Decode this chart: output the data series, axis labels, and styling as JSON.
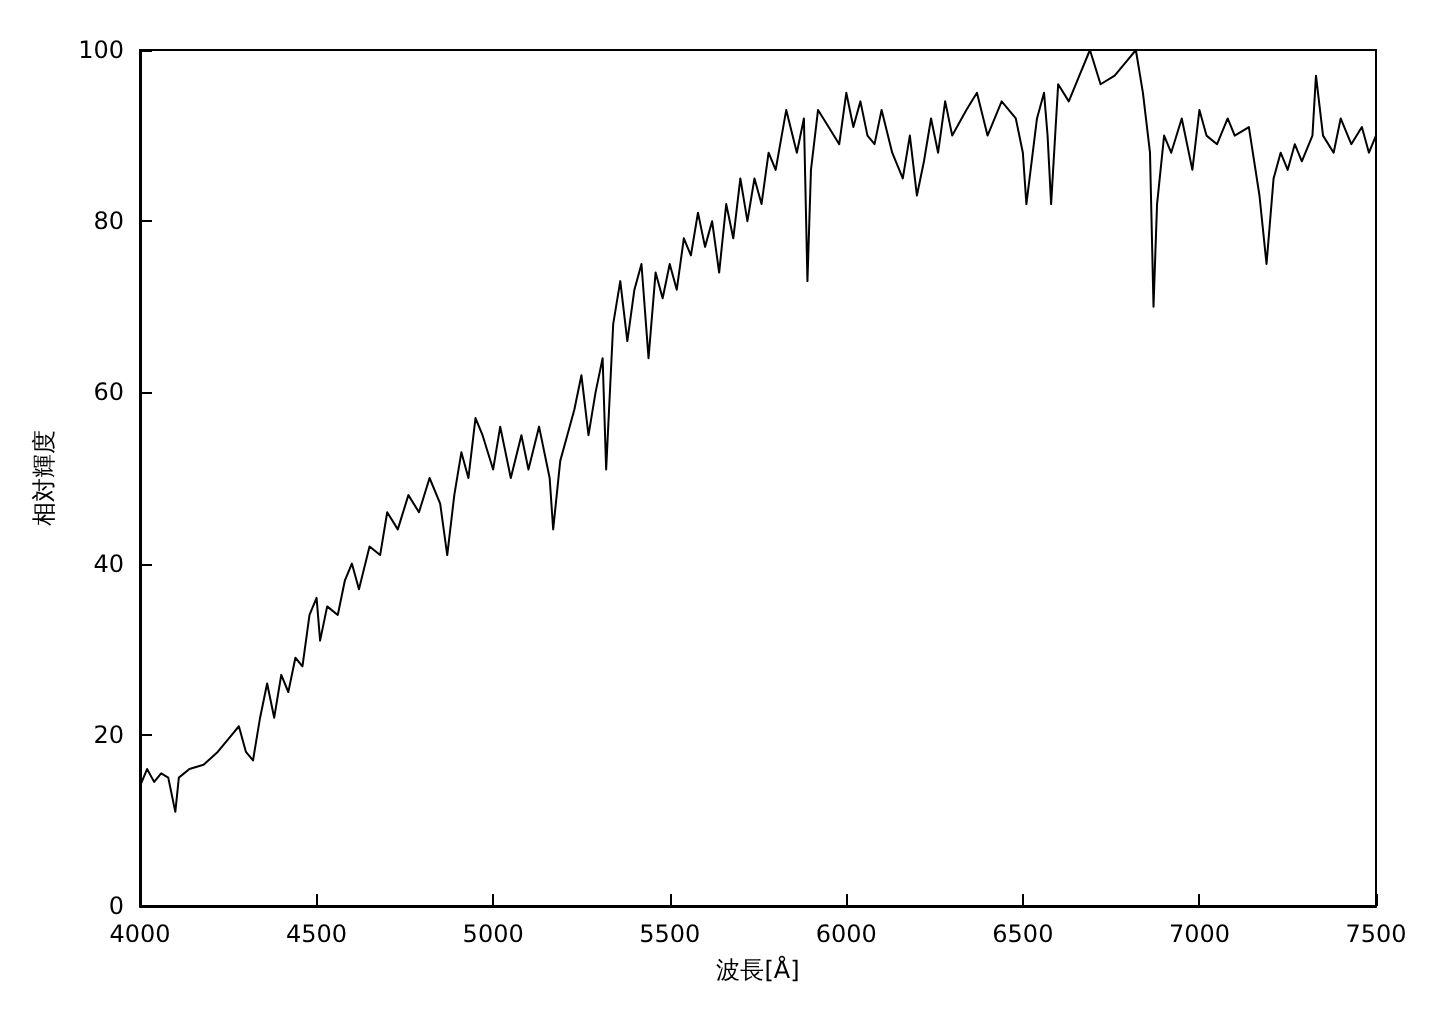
{
  "chart_data": {
    "type": "line",
    "xlabel": "波長[Å]",
    "ylabel": "相対輝度",
    "xlim": [
      4000,
      7500
    ],
    "xticks": [
      4000,
      4500,
      5000,
      5500,
      6000,
      6500,
      7000,
      7500
    ],
    "ylim": [
      0,
      100
    ],
    "yticks": [
      0,
      20,
      40,
      60,
      80,
      100
    ],
    "grid": false,
    "marker": "none",
    "line_style": "solid",
    "series": [
      {
        "color": "#000000",
        "x": [
          4000,
          4020,
          4040,
          4060,
          4080,
          4100,
          4110,
          4140,
          4180,
          4220,
          4260,
          4280,
          4300,
          4320,
          4340,
          4360,
          4380,
          4400,
          4420,
          4440,
          4460,
          4480,
          4500,
          4510,
          4530,
          4560,
          4580,
          4600,
          4620,
          4650,
          4680,
          4700,
          4730,
          4760,
          4790,
          4820,
          4850,
          4870,
          4890,
          4910,
          4930,
          4950,
          4970,
          5000,
          5020,
          5050,
          5080,
          5100,
          5130,
          5160,
          5170,
          5190,
          5210,
          5230,
          5250,
          5270,
          5290,
          5310,
          5320,
          5340,
          5360,
          5380,
          5400,
          5420,
          5440,
          5460,
          5480,
          5500,
          5520,
          5540,
          5560,
          5580,
          5600,
          5620,
          5640,
          5660,
          5680,
          5700,
          5720,
          5740,
          5760,
          5780,
          5800,
          5830,
          5860,
          5880,
          5890,
          5900,
          5920,
          5950,
          5980,
          6000,
          6020,
          6040,
          6060,
          6080,
          6100,
          6130,
          6160,
          6180,
          6200,
          6220,
          6240,
          6260,
          6280,
          6300,
          6340,
          6370,
          6400,
          6440,
          6480,
          6500,
          6510,
          6540,
          6560,
          6570,
          6580,
          6600,
          6630,
          6660,
          6690,
          6720,
          6760,
          6800,
          6820,
          6840,
          6860,
          6870,
          6880,
          6900,
          6920,
          6950,
          6980,
          7000,
          7020,
          7050,
          7080,
          7100,
          7140,
          7170,
          7190,
          7210,
          7230,
          7250,
          7270,
          7290,
          7320,
          7330,
          7350,
          7380,
          7400,
          7430,
          7460,
          7480,
          7500
        ],
        "values": [
          14,
          16,
          14.5,
          15.5,
          15,
          11,
          15,
          16,
          16.5,
          18,
          20,
          21,
          18,
          17,
          22,
          26,
          22,
          27,
          25,
          29,
          28,
          34,
          36,
          31,
          35,
          34,
          38,
          40,
          37,
          42,
          41,
          46,
          44,
          48,
          46,
          50,
          47,
          41,
          48,
          53,
          50,
          57,
          55,
          51,
          56,
          50,
          55,
          51,
          56,
          50,
          44,
          52,
          55,
          58,
          62,
          55,
          60,
          64,
          51,
          68,
          73,
          66,
          72,
          75,
          64,
          74,
          71,
          75,
          72,
          78,
          76,
          81,
          77,
          80,
          74,
          82,
          78,
          85,
          80,
          85,
          82,
          88,
          86,
          93,
          88,
          92,
          73,
          86,
          93,
          91,
          89,
          95,
          91,
          94,
          90,
          89,
          93,
          88,
          85,
          90,
          83,
          87,
          92,
          88,
          94,
          90,
          93,
          95,
          90,
          94,
          92,
          88,
          82,
          92,
          95,
          90,
          82,
          96,
          94,
          97,
          100,
          96,
          97,
          99,
          100,
          95,
          88,
          70,
          82,
          90,
          88,
          92,
          86,
          93,
          90,
          89,
          92,
          90,
          91,
          83,
          75,
          85,
          88,
          86,
          89,
          87,
          90,
          97,
          90,
          88,
          92,
          89,
          91,
          88,
          90
        ]
      }
    ]
  }
}
